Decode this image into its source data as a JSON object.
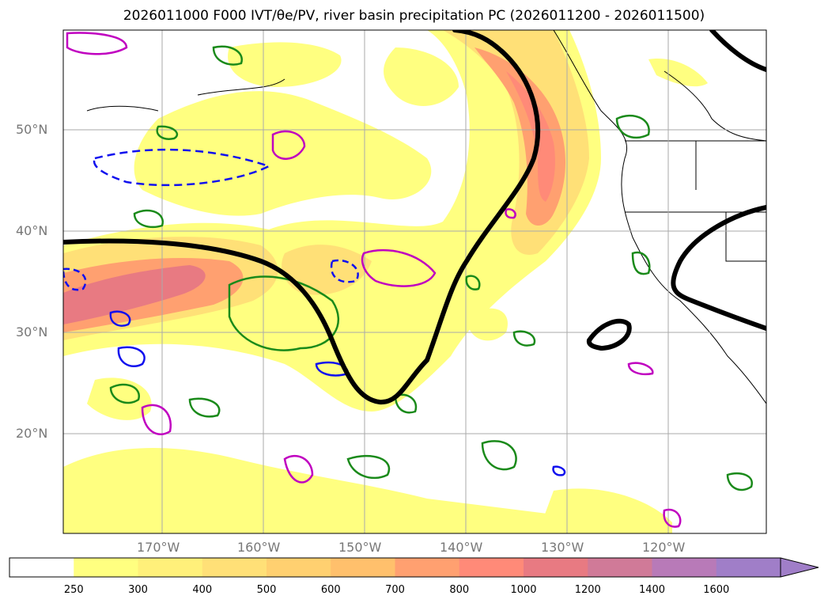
{
  "title_text": "2026011000 F000 IVT/θe/PV, river basin precipitation PC (2026011200 - 2026011500)",
  "chart_data": {
    "type": "contour-map",
    "title": "2026011000 F000 IVT/θe/PV, river basin precipitation PC (2026011200 - 2026011500)",
    "lat_ticks": [
      "50°N",
      "40°N",
      "30°N",
      "20°N"
    ],
    "lon_ticks": [
      "170°W",
      "160°W",
      "150°W",
      "140°W",
      "130°W",
      "120°W"
    ],
    "colorbar": {
      "labels": [
        "250",
        "300",
        "400",
        "500",
        "600",
        "700",
        "800",
        "1000",
        "1200",
        "1400",
        "1600"
      ],
      "colors": [
        "#ffffff",
        "#ffff80",
        "#fff07a",
        "#ffe077",
        "#ffd070",
        "#ffc06c",
        "#ffa070",
        "#ff8a78",
        "#e87a82",
        "#d07a98",
        "#b87ab8",
        "#a07ec8"
      ],
      "extend": "max"
    },
    "contours": {
      "ivt_shading": "yellow-orange-red",
      "theta_e": "black thick",
      "pv": [
        "green",
        "blue dashed",
        "magenta"
      ]
    }
  }
}
